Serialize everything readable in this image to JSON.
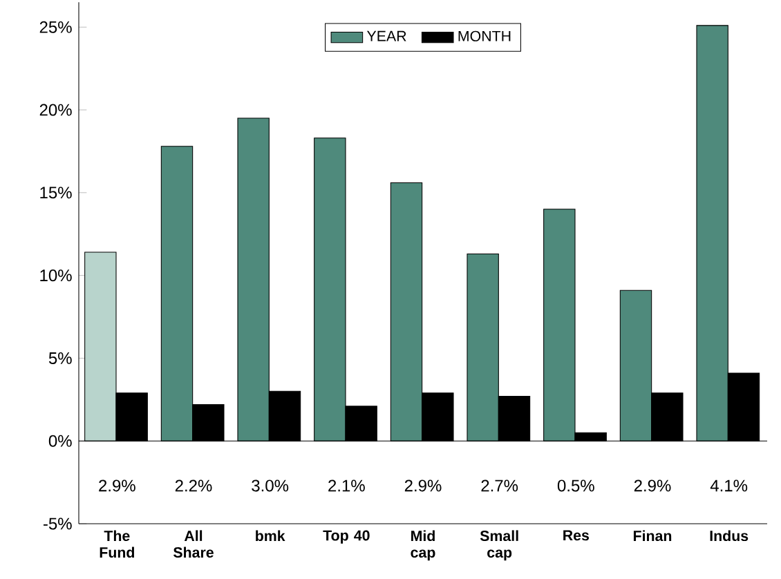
{
  "chart_data": {
    "type": "bar",
    "categories": [
      "The Fund",
      "All Share",
      "bmk",
      "Top 40",
      "Mid cap",
      "Small cap",
      "Res",
      "Finan",
      "Indus"
    ],
    "series": [
      {
        "name": "YEAR",
        "color": "#4f8a7c",
        "colors": [
          "#b8d4cc",
          "#4f8a7c",
          "#4f8a7c",
          "#4f8a7c",
          "#4f8a7c",
          "#4f8a7c",
          "#4f8a7c",
          "#4f8a7c",
          "#4f8a7c"
        ],
        "values": [
          11.4,
          17.8,
          19.5,
          18.3,
          15.6,
          11.3,
          14.0,
          9.1,
          25.1
        ]
      },
      {
        "name": "MONTH",
        "color": "#000000",
        "values": [
          2.9,
          2.2,
          3.0,
          2.1,
          2.9,
          2.7,
          0.5,
          2.9,
          4.1
        ],
        "value_labels": [
          "2.9%",
          "2.2%",
          "3.0%",
          "2.1%",
          "2.9%",
          "2.7%",
          "0.5%",
          "2.9%",
          "4.1%"
        ]
      }
    ],
    "ylim": [
      -5,
      26.5
    ],
    "yticks": [
      {
        "value": -5,
        "label": "-5%"
      },
      {
        "value": 0,
        "label": "0%"
      },
      {
        "value": 5,
        "label": "5%"
      },
      {
        "value": 10,
        "label": "10%"
      },
      {
        "value": 15,
        "label": "15%"
      },
      {
        "value": 20,
        "label": "20%"
      },
      {
        "value": 25,
        "label": "25%"
      }
    ],
    "legend": "top"
  }
}
